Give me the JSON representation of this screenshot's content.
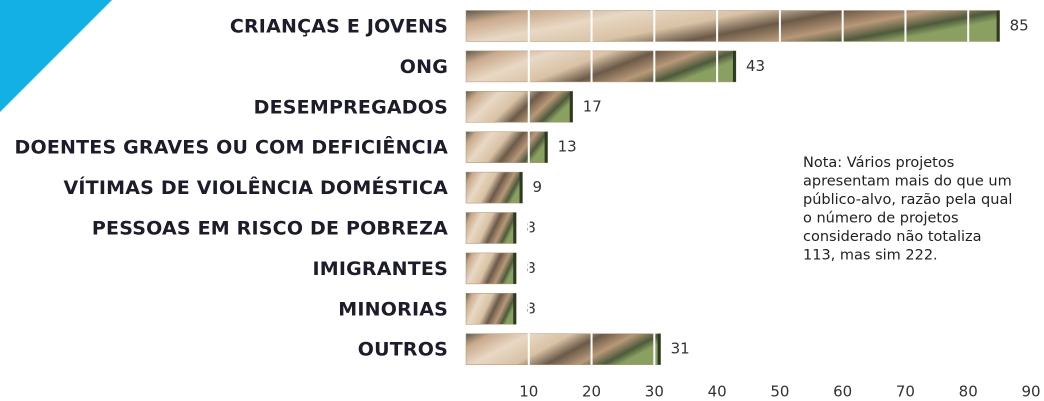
{
  "chart_data": {
    "type": "hbar",
    "categories": [
      "CRIANÇAS E JOVENS",
      "ONG",
      "DESEMPREGADOS",
      "DOENTES GRAVES OU COM DEFICIÊNCIA",
      "VÍTIMAS DE VIOLÊNCIA DOMÉSTICA",
      "PESSOAS EM RISCO DE POBREZA",
      "IMIGRANTES",
      "MINORIAS",
      "OUTROS"
    ],
    "values": [
      85,
      43,
      17,
      13,
      9,
      8,
      8,
      8,
      31
    ],
    "color": "#b0906e",
    "xlim": [
      0,
      90
    ],
    "xticks": [
      10,
      20,
      30,
      40,
      50,
      60,
      70,
      80,
      90
    ],
    "grid": true,
    "note": [
      "Nota: Vários projetos",
      "apresentam mais do que um",
      "público-alvo, razão pela qual",
      "o número de projetos",
      "considerado não totaliza",
      "113, mas sim 222."
    ]
  }
}
